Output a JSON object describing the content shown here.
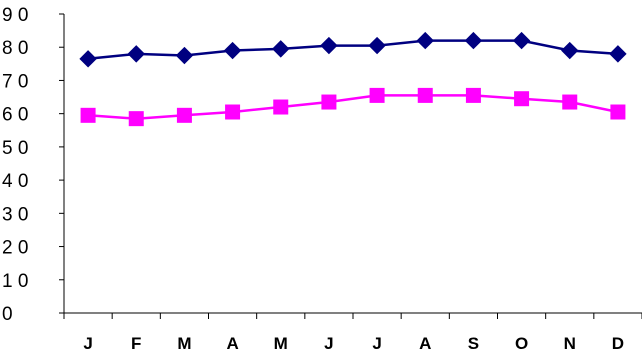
{
  "chart_data": {
    "type": "line",
    "title": "",
    "xlabel": "",
    "ylabel": "",
    "categories": [
      "J",
      "F",
      "M",
      "A",
      "M",
      "J",
      "J",
      "A",
      "S",
      "O",
      "N",
      "D"
    ],
    "ylim": [
      0,
      90
    ],
    "yticks": [
      0,
      10,
      20,
      30,
      40,
      50,
      60,
      70,
      80,
      90
    ],
    "ytick_labels": [
      "0",
      "1 0",
      "2 0",
      "3 0",
      "4 0",
      "5 0",
      "6 0",
      "7 0",
      "8 0",
      "9 0"
    ],
    "grid": false,
    "legend": "none",
    "series": [
      {
        "color": "#000080",
        "marker": "diamond",
        "values": [
          76.5,
          78,
          77.5,
          79,
          79.5,
          80.5,
          80.5,
          82,
          82,
          82,
          79,
          78
        ]
      },
      {
        "color": "#FF00FF",
        "marker": "square",
        "values": [
          59.5,
          58.5,
          59.5,
          60.5,
          62,
          63.5,
          65.5,
          65.5,
          65.5,
          64.5,
          63.5,
          60.5
        ]
      }
    ]
  }
}
